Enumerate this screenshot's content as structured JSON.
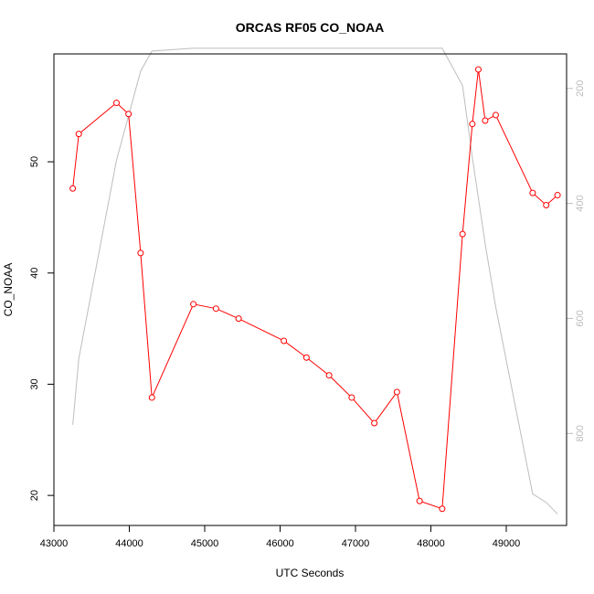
{
  "chart_data": {
    "type": "line",
    "title": "ORCAS RF05 CO_NOAA",
    "xlabel": "UTC Seconds",
    "ylabel": "CO_NOAA",
    "xlim": [
      43000,
      49800
    ],
    "ylim": [
      17.3,
      59.7
    ],
    "x_ticks": [
      43000,
      44000,
      45000,
      46000,
      47000,
      48000,
      49000
    ],
    "y_ticks": [
      20,
      30,
      40,
      50
    ],
    "y2_ticks": [
      200,
      400,
      600,
      800
    ],
    "y2_direction": "reversed",
    "y2_lim": [
      960,
      140
    ],
    "grid": false,
    "colors": {
      "co": "#ff0000",
      "pressure": "#bdbdbd",
      "axis": "#000000",
      "right_axis": "#bdbdbd"
    },
    "series": [
      {
        "axis": "left",
        "marker": "open-circle",
        "x": [
          43250,
          43330,
          43830,
          43990,
          44150,
          44300,
          44850,
          45150,
          45450,
          46050,
          46350,
          46650,
          46950,
          47250,
          47550,
          47850,
          48150,
          48420,
          48550,
          48630,
          48720,
          48860,
          49350,
          49530,
          49680
        ],
        "y": [
          47.6,
          52.5,
          55.3,
          54.3,
          41.8,
          28.8,
          37.2,
          36.8,
          35.9,
          33.9,
          32.4,
          30.8,
          28.8,
          26.5,
          29.3,
          19.5,
          18.8,
          43.5,
          53.4,
          58.3,
          53.7,
          54.2,
          47.2,
          46.1,
          47.0
        ]
      },
      {
        "axis": "right",
        "marker": "none",
        "x": [
          43250,
          43330,
          43830,
          44150,
          44300,
          44850,
          48150,
          48420,
          48550,
          48720,
          48860,
          49350,
          49530,
          49680
        ],
        "y": [
          785,
          670,
          325,
          170,
          135,
          130,
          130,
          195,
          320,
          470,
          580,
          905,
          920,
          940
        ]
      }
    ]
  }
}
